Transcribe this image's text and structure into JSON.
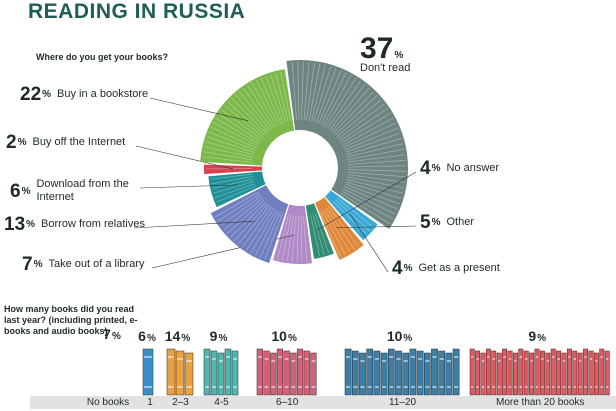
{
  "title": "READING IN RUSSIA",
  "chart_data": [
    {
      "type": "pie",
      "title": "Where do you get your books?",
      "unit": "%",
      "categories": [
        "Don't read",
        "Get as a present",
        "Other",
        "No answer",
        "Take out of a library",
        "Borrow from relatives",
        "Download from the Internet",
        "Buy off the Internet",
        "Buy in a bookstore"
      ],
      "values": [
        37,
        4,
        5,
        4,
        7,
        13,
        6,
        2,
        22
      ],
      "colors": [
        "#6d8481",
        "#3aa9d6",
        "#e0883a",
        "#2f8d73",
        "#b08ac6",
        "#6f7fc0",
        "#1f8f98",
        "#d8404e",
        "#7cb84a"
      ]
    },
    {
      "type": "bar",
      "title": "How many books did you read last year? (including printed, e-books and audio books)",
      "unit": "%",
      "categories": [
        "No books",
        "1",
        "2–3",
        "4-5",
        "6–10",
        "11–20",
        "More than 20 books"
      ],
      "values": [
        7,
        6,
        14,
        9,
        10,
        10,
        9
      ],
      "colors": [
        "#888888",
        "#3a8fc8",
        "#e8a040",
        "#52b5b0",
        "#d65f78",
        "#3d7ea6",
        "#e05860"
      ]
    }
  ]
}
